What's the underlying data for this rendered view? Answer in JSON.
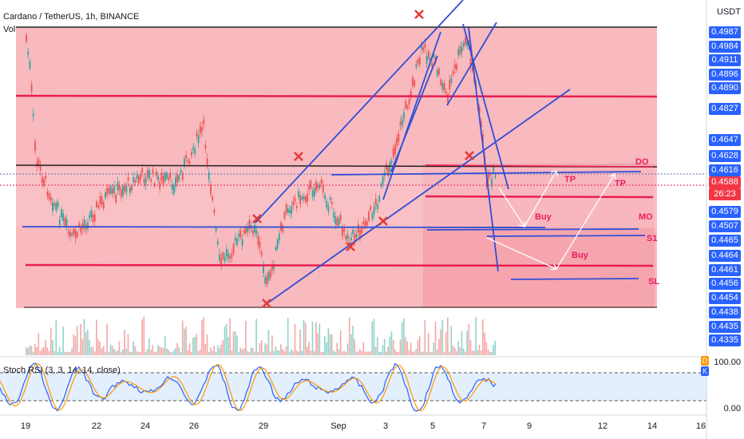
{
  "header": {
    "symbol_line": "Cardano / TetherUS, 1h, BINANCE",
    "volume_label": "Vol"
  },
  "currency": "USDT",
  "price_axis": [
    {
      "text": "0.4987",
      "style": "blue"
    },
    {
      "text": "0.4984",
      "style": "blue"
    },
    {
      "text": "0.4911",
      "style": "blue"
    },
    {
      "text": "0.4896",
      "style": "blue"
    },
    {
      "text": "0.4890",
      "style": "blue"
    },
    {
      "text": "0.4827",
      "style": "blue"
    },
    {
      "text": "0.4647",
      "style": "blue"
    },
    {
      "text": "0.4628",
      "style": "blue"
    },
    {
      "text": "0.4616",
      "style": "blue"
    },
    {
      "text": "0.4588",
      "style": "pink"
    },
    {
      "text": "26:23",
      "style": "pink"
    },
    {
      "text": "0.4579",
      "style": "blue"
    },
    {
      "text": "0.4507",
      "style": "blue"
    },
    {
      "text": "0.4465",
      "style": "blue"
    },
    {
      "text": "0.4464",
      "style": "blue"
    },
    {
      "text": "0.4461",
      "style": "blue"
    },
    {
      "text": "0.4456",
      "style": "blue"
    },
    {
      "text": "0.4454",
      "style": "blue"
    },
    {
      "text": "0.4438",
      "style": "blue"
    },
    {
      "text": "0.4435",
      "style": "blue"
    },
    {
      "text": "0.4335",
      "style": "blue"
    }
  ],
  "date_axis": [
    "19",
    "22",
    "24",
    "26",
    "29",
    "Sep",
    "3",
    "5",
    "7",
    "9",
    "12",
    "14",
    "16"
  ],
  "annotations": {
    "do": "DO",
    "mo": "MO",
    "s1": "S1",
    "sl": "SL",
    "tp1": "TP",
    "tp2": "TP",
    "buy1": "Buy",
    "buy2": "Buy"
  },
  "stoch": {
    "title": "Stoch RSI (3, 3, 14, 14, close)",
    "top_value": "100.00",
    "bottom_value": "0.00",
    "badge_d": "D",
    "badge_k": "K"
  },
  "colors": {
    "zone_fill": "#f8a5ad",
    "red_level": "#e91e4f",
    "blue_line": "#2f4fd6",
    "candle_up": "#26a69a",
    "candle_down": "#ef5350"
  }
}
